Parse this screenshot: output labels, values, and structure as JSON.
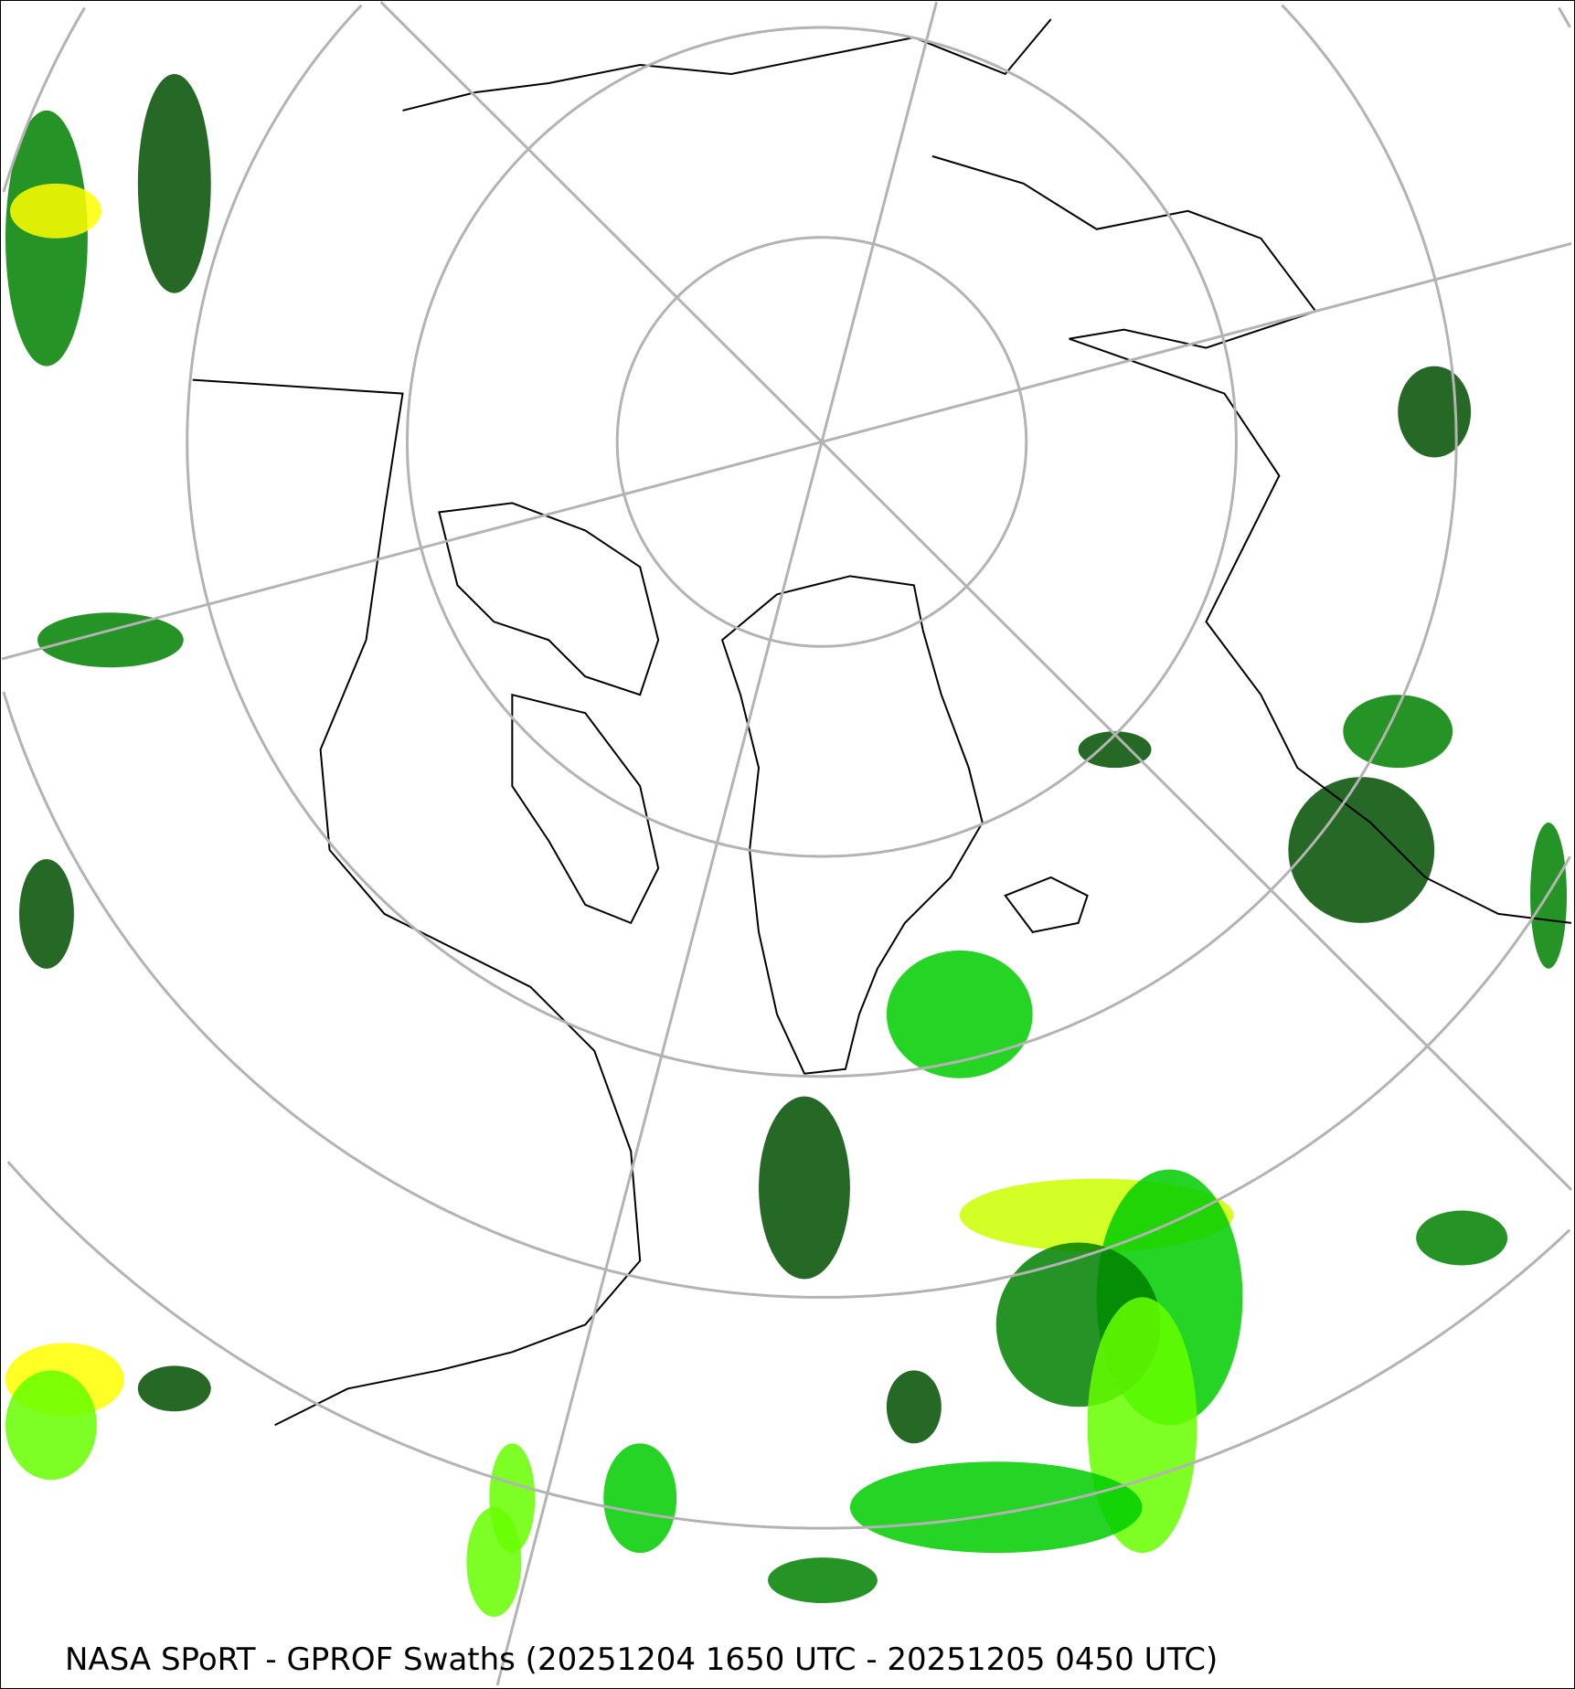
{
  "caption": "NASA SPoRT - GPROF Swaths (20251204 1650 UTC - 20251205 0450 UTC)",
  "map": {
    "projection": "north-polar-stereographic",
    "graticule_color": "#b3b3b3",
    "coastline_color": "#000000",
    "precip_colors": [
      "#004d00",
      "#008000",
      "#00cc00",
      "#66ff00",
      "#ccff00",
      "#ffff00",
      "#ffcc00",
      "#ff9900"
    ]
  }
}
